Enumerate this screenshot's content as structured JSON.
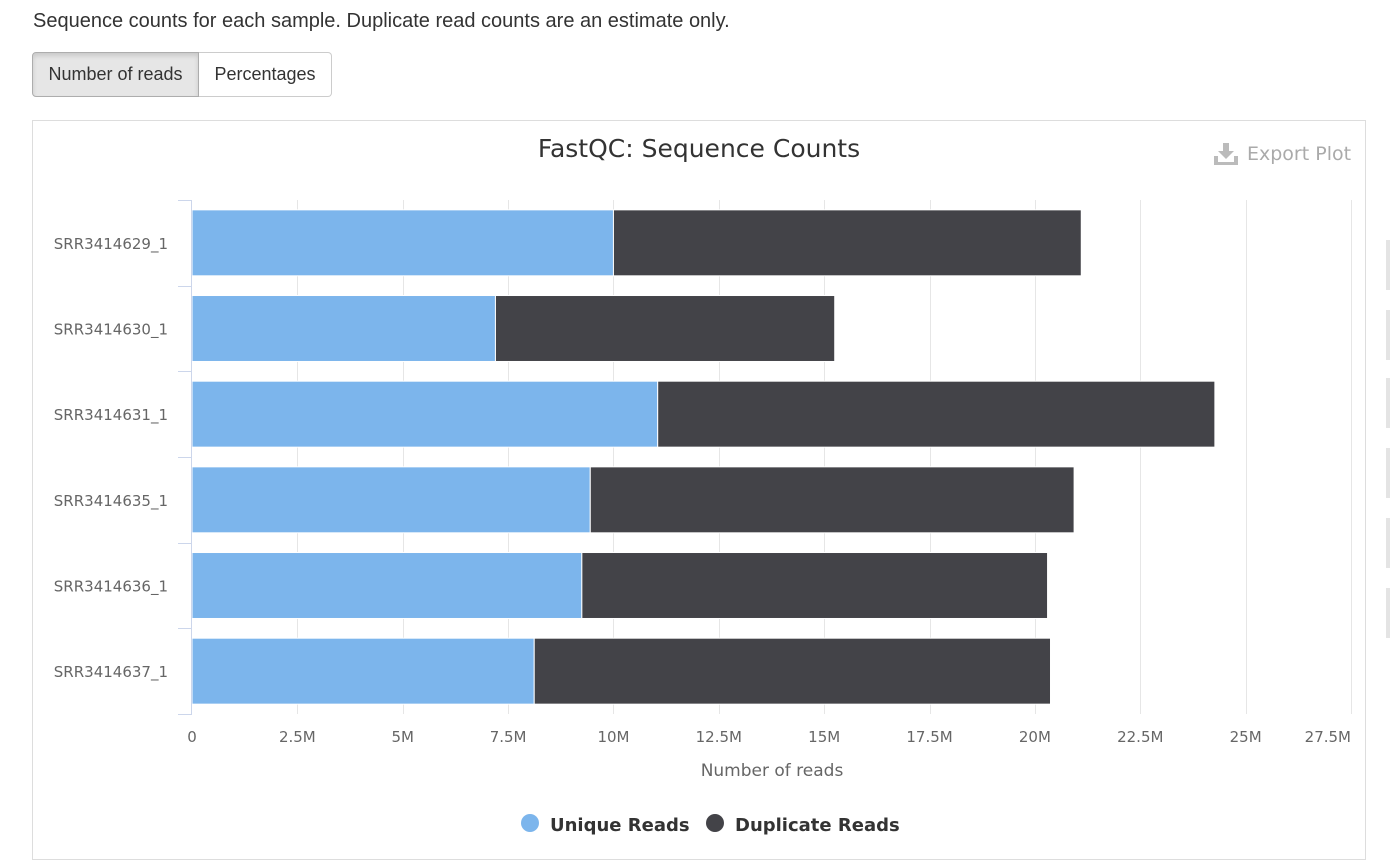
{
  "description": "Sequence counts for each sample. Duplicate read counts are an estimate only.",
  "toggle": {
    "number_of_reads_label": "Number of reads",
    "percentages_label": "Percentages",
    "active": "Number of reads"
  },
  "export_plot_label": "Export Plot",
  "colors": {
    "unique": "#7cb5ec",
    "duplicate": "#434348"
  },
  "chart_data": {
    "type": "bar",
    "orientation": "horizontal",
    "stacked": true,
    "title": "FastQC: Sequence Counts",
    "xlabel": "Number of reads",
    "ylabel": "",
    "categories": [
      "SRR3414629_1",
      "SRR3414630_1",
      "SRR3414631_1",
      "SRR3414635_1",
      "SRR3414636_1",
      "SRR3414637_1"
    ],
    "series": [
      {
        "name": "Unique Reads",
        "color": "#7cb5ec",
        "values": [
          10000000,
          7200000,
          11050000,
          9450000,
          9250000,
          8120000
        ]
      },
      {
        "name": "Duplicate Reads",
        "color": "#434348",
        "values": [
          11100000,
          8050000,
          13220000,
          11480000,
          11050000,
          12250000
        ]
      }
    ],
    "xlim": [
      0,
      27500000
    ],
    "xticks": [
      0,
      2500000,
      5000000,
      7500000,
      10000000,
      12500000,
      15000000,
      17500000,
      20000000,
      22500000,
      25000000,
      27500000
    ],
    "xtick_labels": [
      "0",
      "2.5M",
      "5M",
      "7.5M",
      "10M",
      "12.5M",
      "15M",
      "17.5M",
      "20M",
      "22.5M",
      "25M",
      "27.5M"
    ],
    "grid": true,
    "legend_position": "bottom-center"
  }
}
